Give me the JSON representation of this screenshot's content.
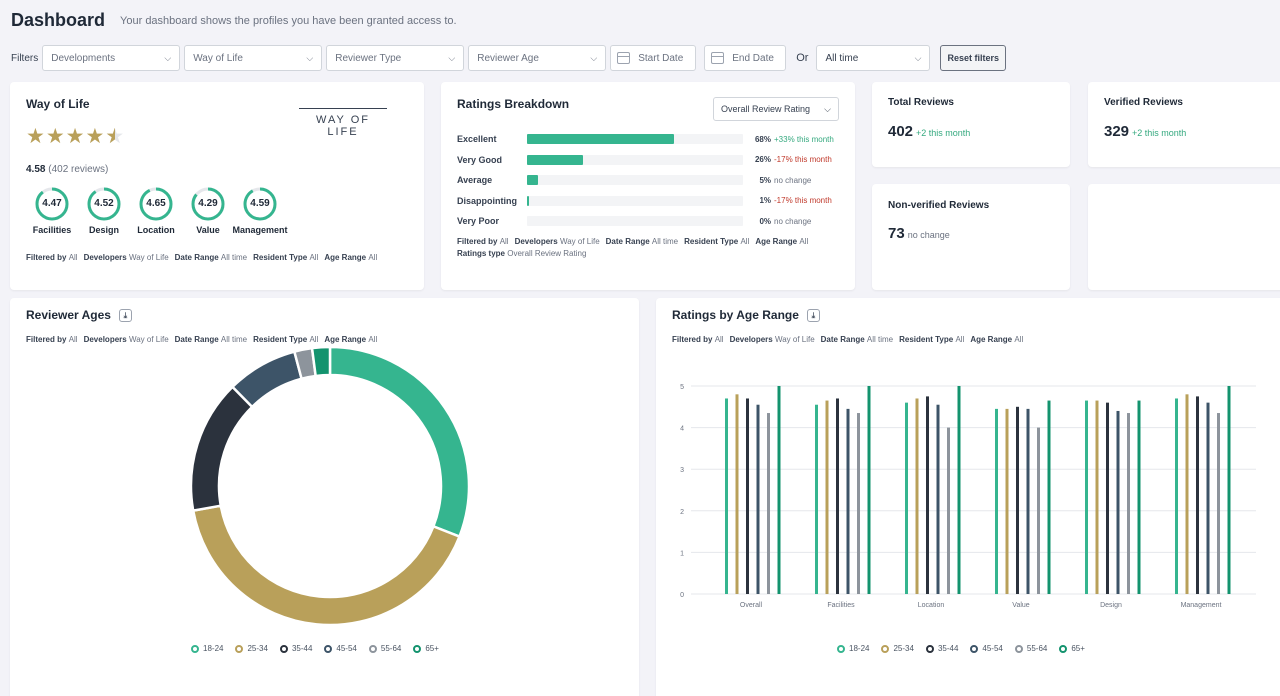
{
  "header": {
    "title": "Dashboard",
    "subtitle": "Your dashboard shows the profiles you have been granted access to."
  },
  "filters": {
    "label": "Filters",
    "developments": "Developments",
    "way_of_life": "Way of Life",
    "reviewer_type": "Reviewer Type",
    "reviewer_age": "Reviewer Age",
    "start_date": "Start Date",
    "end_date": "End Date",
    "or_label": "Or",
    "time_range": "All time",
    "reset_label": "Reset filters"
  },
  "profile": {
    "title": "Way of Life",
    "logo_text": "WAY OF LIFE",
    "rating_stars": 4.5,
    "score": "4.58",
    "reviews": "(402 reviews)",
    "star_color": "#b9a05a",
    "ring_color": "#35b58f",
    "rings": [
      {
        "label": "Facilities",
        "value": "4.47",
        "fraction": 0.894
      },
      {
        "label": "Design",
        "value": "4.52",
        "fraction": 0.904
      },
      {
        "label": "Location",
        "value": "4.65",
        "fraction": 0.93
      },
      {
        "label": "Value",
        "value": "4.29",
        "fraction": 0.858
      },
      {
        "label": "Management",
        "value": "4.59",
        "fraction": 0.918
      }
    ],
    "meta": [
      {
        "k": "Filtered by",
        "v": "All"
      },
      {
        "k": "Developers",
        "v": "Way of Life"
      },
      {
        "k": "Date Range",
        "v": "All time"
      },
      {
        "k": "Resident Type",
        "v": "All"
      },
      {
        "k": "Age Range",
        "v": "All"
      }
    ]
  },
  "ratings": {
    "title": "Ratings Breakdown",
    "select_value": "Overall Review Rating",
    "bar_color": "#35b58f",
    "rows": [
      {
        "label": "Excellent",
        "percent": 68,
        "pct_text": "68%",
        "change": "+33% this month",
        "trend": "up"
      },
      {
        "label": "Very Good",
        "percent": 26,
        "pct_text": "26%",
        "change": "-17% this month",
        "trend": "down"
      },
      {
        "label": "Average",
        "percent": 5,
        "pct_text": "5%",
        "change": "no change",
        "trend": "flat"
      },
      {
        "label": "Disappointing",
        "percent": 1,
        "pct_text": "1%",
        "change": "-17% this month",
        "trend": "down"
      },
      {
        "label": "Very Poor",
        "percent": 0,
        "pct_text": "0%",
        "change": "no change",
        "trend": "flat"
      }
    ],
    "meta": [
      {
        "k": "Filtered by",
        "v": "All"
      },
      {
        "k": "Developers",
        "v": "Way of Life"
      },
      {
        "k": "Date Range",
        "v": "All time"
      },
      {
        "k": "Resident Type",
        "v": "All"
      },
      {
        "k": "Age Range",
        "v": "All"
      }
    ],
    "meta2": {
      "k": "Ratings type",
      "v": "Overall Review Rating"
    }
  },
  "stats": {
    "total": {
      "title": "Total Reviews",
      "value": "402",
      "change": "+2 this month",
      "trend": "up"
    },
    "verified": {
      "title": "Verified Reviews",
      "value": "329",
      "change": "+2 this month",
      "trend": "up"
    },
    "nonverified": {
      "title": "Non-verified Reviews",
      "value": "73",
      "change": "no change",
      "trend": "flat"
    }
  },
  "ages": {
    "title": "Reviewer Ages",
    "download_icon": "download-icon",
    "meta": [
      {
        "k": "Filtered by",
        "v": "All"
      },
      {
        "k": "Developers",
        "v": "Way of Life"
      },
      {
        "k": "Date Range",
        "v": "All time"
      },
      {
        "k": "Resident Type",
        "v": "All"
      },
      {
        "k": "Age Range",
        "v": "All"
      }
    ]
  },
  "age_ratings": {
    "title": "Ratings by Age Range",
    "download_icon": "download-icon",
    "meta": [
      {
        "k": "Filtered by",
        "v": "All"
      },
      {
        "k": "Developers",
        "v": "Way of Life"
      },
      {
        "k": "Date Range",
        "v": "All time"
      },
      {
        "k": "Resident Type",
        "v": "All"
      },
      {
        "k": "Age Range",
        "v": "All"
      }
    ]
  },
  "chart_data": [
    {
      "type": "pie",
      "donut": true,
      "legend_position": "bottom",
      "categories": [
        "18-24",
        "25-34",
        "35-44",
        "45-54",
        "55-64",
        "65+"
      ],
      "values": [
        30,
        40,
        15,
        8,
        2,
        2
      ],
      "colors": [
        "#35b58f",
        "#b9a05a",
        "#2b323d",
        "#3d5468",
        "#8d949c",
        "#13936e"
      ]
    },
    {
      "type": "bar",
      "categories": [
        "Overall",
        "Facilities",
        "Location",
        "Value",
        "Design",
        "Management"
      ],
      "y_ticks": [
        "0",
        "1",
        "2",
        "3",
        "4",
        "5"
      ],
      "ylim": [
        0,
        5
      ],
      "grid": true,
      "legend_position": "bottom",
      "series": [
        {
          "name": "18-24",
          "color": "#35b58f",
          "values": [
            4.7,
            4.55,
            4.6,
            4.45,
            4.65,
            4.7
          ]
        },
        {
          "name": "25-34",
          "color": "#b9a05a",
          "values": [
            4.8,
            4.65,
            4.7,
            4.45,
            4.65,
            4.8
          ]
        },
        {
          "name": "35-44",
          "color": "#2b323d",
          "values": [
            4.7,
            4.7,
            4.75,
            4.5,
            4.6,
            4.75
          ]
        },
        {
          "name": "45-54",
          "color": "#3d5468",
          "values": [
            4.55,
            4.45,
            4.55,
            4.45,
            4.4,
            4.6
          ]
        },
        {
          "name": "55-64",
          "color": "#8d949c",
          "values": [
            4.35,
            4.35,
            4.0,
            4.0,
            4.35,
            4.35
          ]
        },
        {
          "name": "65+",
          "color": "#13936e",
          "values": [
            5.0,
            5.0,
            5.0,
            4.65,
            4.65,
            5.0
          ]
        }
      ]
    }
  ]
}
